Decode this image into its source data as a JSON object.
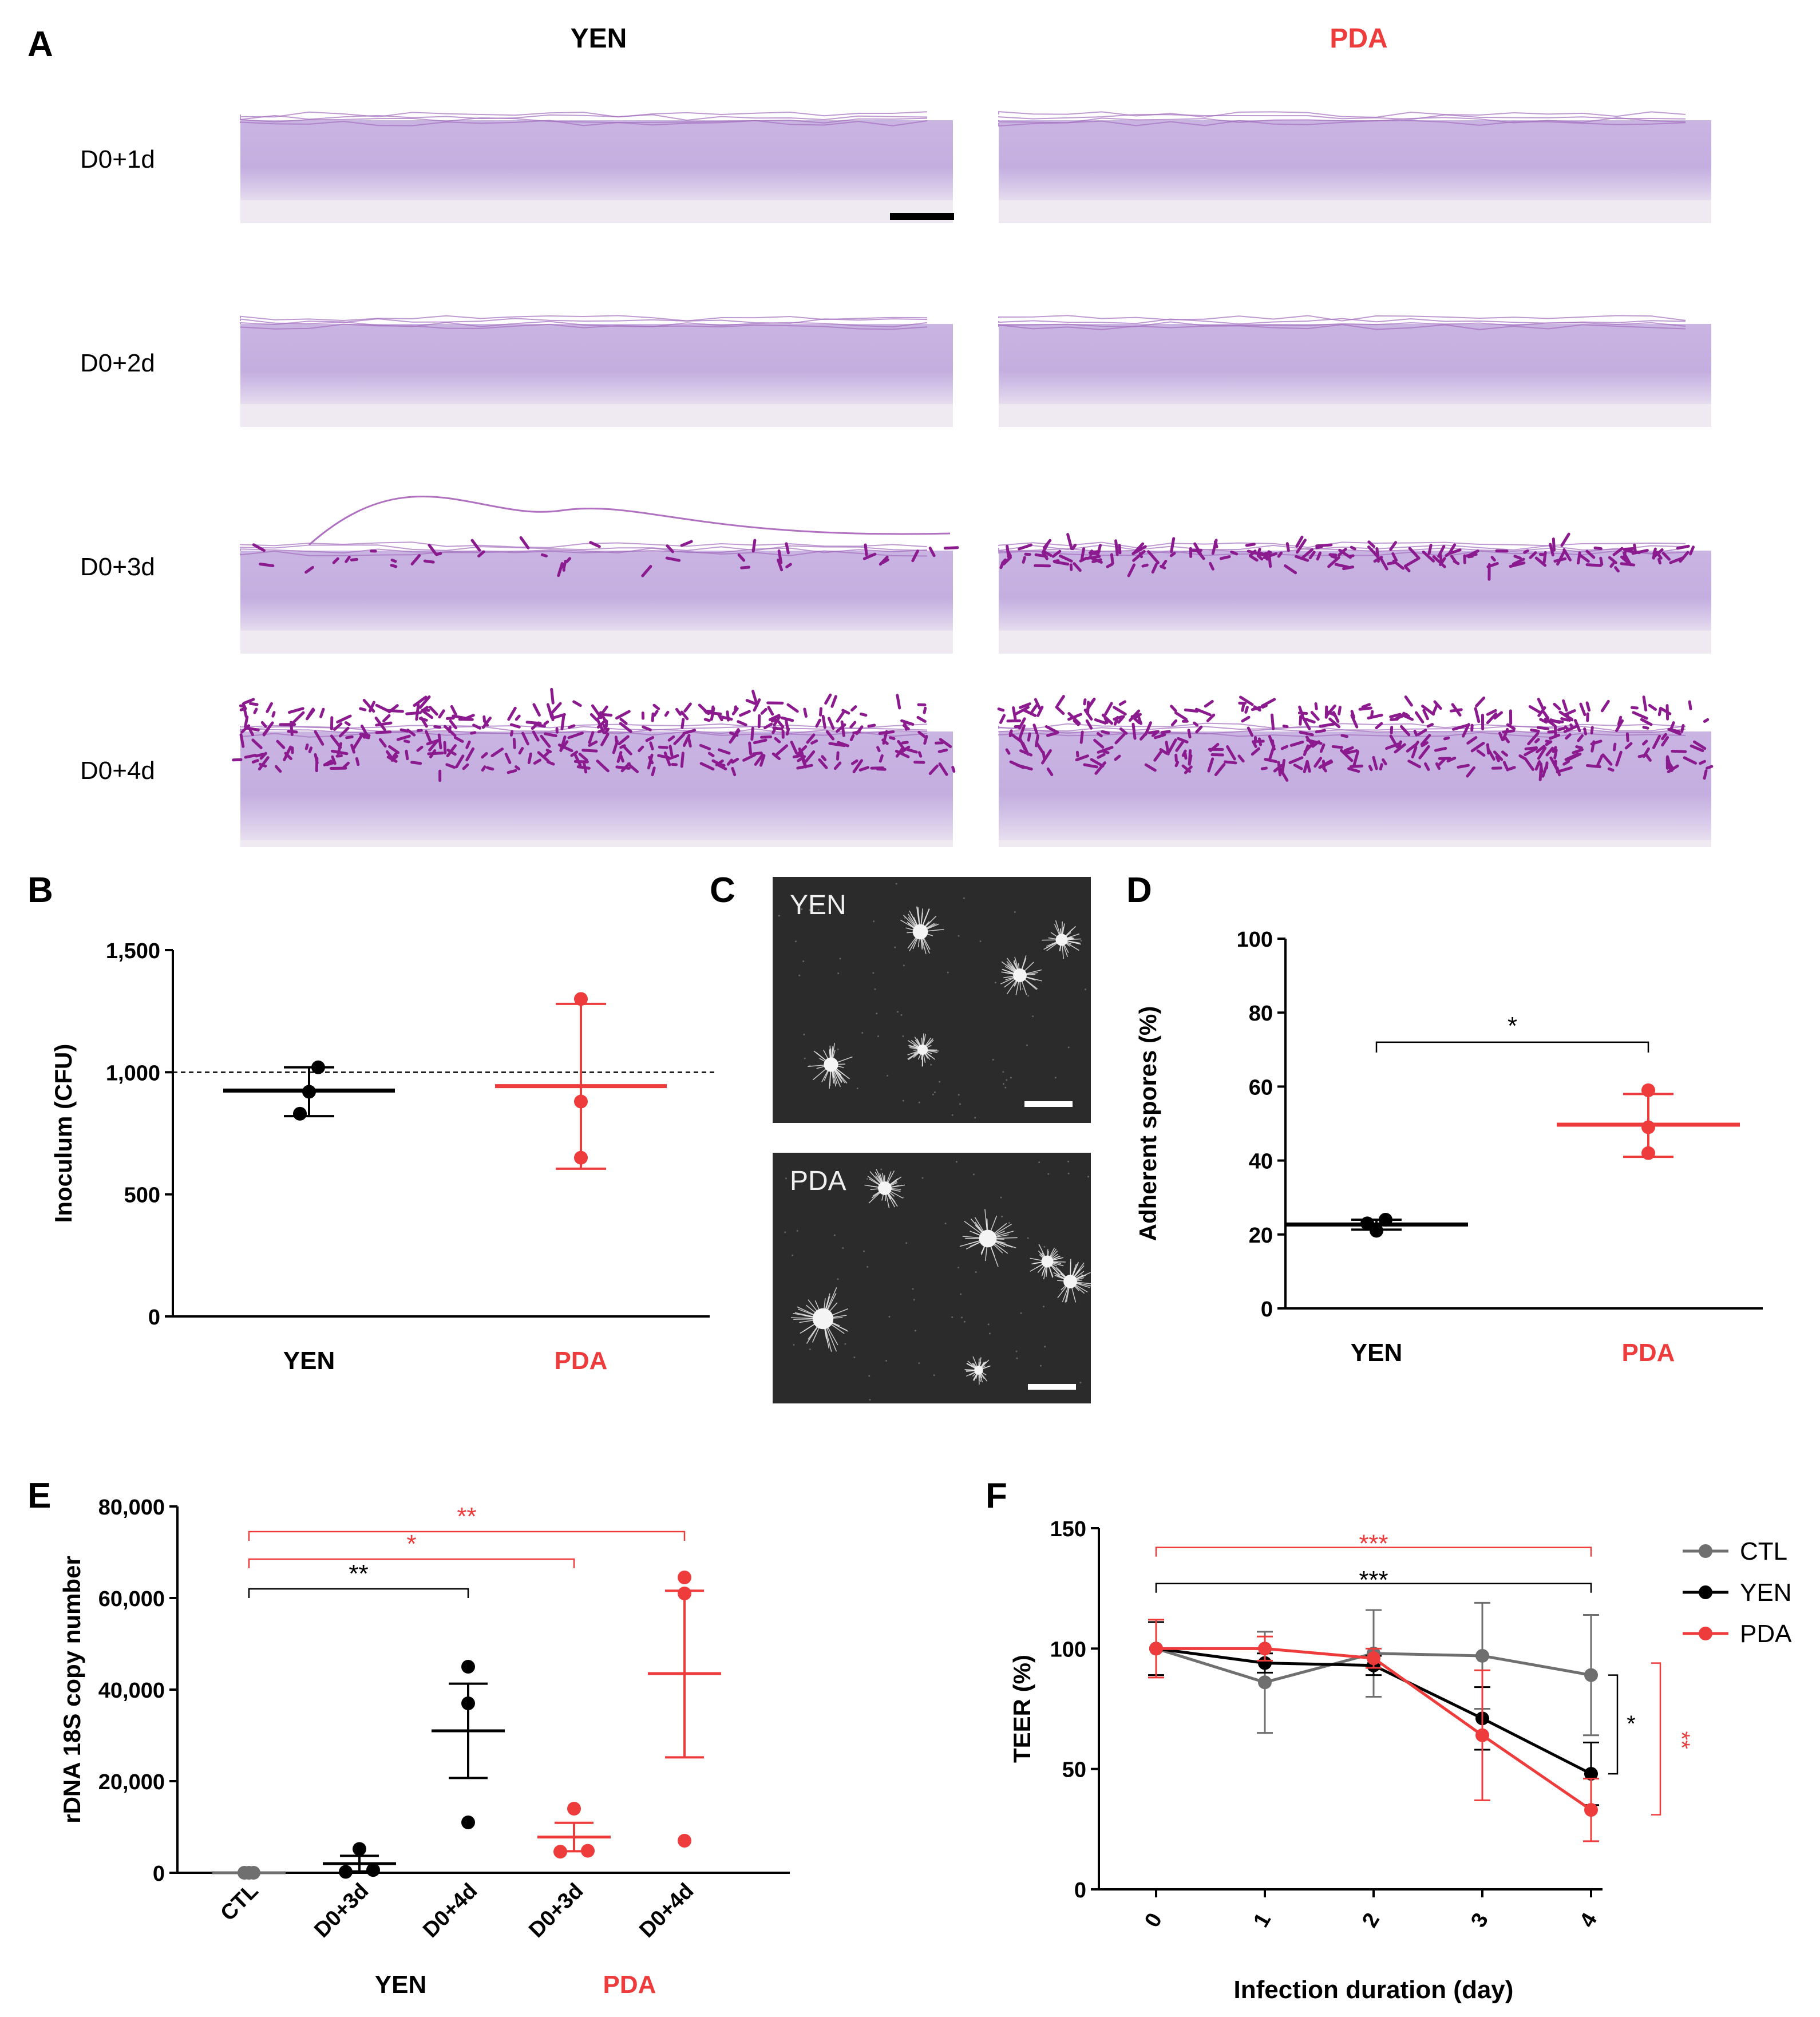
{
  "colors": {
    "yen": "#000000",
    "pda": "#ee3b3b",
    "ctl": "#6f6f6f",
    "stain_light": "#cdb8e0",
    "stain_dark": "#8a1a8e"
  },
  "panel_a": {
    "label": "A",
    "col_titles": [
      "YEN",
      "PDA"
    ],
    "row_labels": [
      "D0+1d",
      "D0+2d",
      "D0+3d",
      "D0+4d"
    ]
  },
  "panel_b": {
    "label": "B"
  },
  "panel_c": {
    "label": "C",
    "images": [
      "YEN",
      "PDA"
    ]
  },
  "panel_d": {
    "label": "D"
  },
  "panel_e": {
    "label": "E",
    "group_labels": [
      "YEN",
      "PDA"
    ]
  },
  "panel_f": {
    "label": "F"
  },
  "chart_data": [
    {
      "panel": "B",
      "type": "scatter",
      "ylabel": "Inoculum (CFU)",
      "categories": [
        "YEN",
        "PDA"
      ],
      "yticks": [
        0,
        500,
        1000,
        1500
      ],
      "ytick_labels": [
        "0",
        "500",
        "1,000",
        "1,500"
      ],
      "ylim": [
        0,
        1500
      ],
      "reference_line": 1000,
      "series": [
        {
          "category": "YEN",
          "points": [
            830,
            920,
            1020
          ],
          "mean": 925,
          "err_low": 820,
          "err_high": 1020
        },
        {
          "category": "PDA",
          "points": [
            650,
            880,
            1300
          ],
          "mean": 943,
          "err_low": 605,
          "err_high": 1280
        }
      ]
    },
    {
      "panel": "D",
      "type": "scatter",
      "ylabel": "Adherent spores (%)",
      "categories": [
        "YEN",
        "PDA"
      ],
      "yticks": [
        0,
        20,
        40,
        60,
        80,
        100
      ],
      "ytick_labels": [
        "0",
        "20",
        "40",
        "60",
        "80",
        "100"
      ],
      "ylim": [
        0,
        100
      ],
      "significance": "*",
      "series": [
        {
          "category": "YEN",
          "points": [
            21,
            23,
            24
          ],
          "mean": 22.7,
          "err_low": 21.3,
          "err_high": 24
        },
        {
          "category": "PDA",
          "points": [
            42,
            49,
            59
          ],
          "mean": 49.7,
          "err_low": 41,
          "err_high": 58
        }
      ]
    },
    {
      "panel": "E",
      "type": "scatter",
      "ylabel": "rDNA 18S copy number",
      "categories": [
        "CTL",
        "D0+3d",
        "D0+4d",
        "D0+3d",
        "D0+4d"
      ],
      "yticks": [
        0,
        20000,
        40000,
        60000,
        80000
      ],
      "ytick_labels": [
        "0",
        "20,000",
        "40,000",
        "60,000",
        "80,000"
      ],
      "ylim": [
        0,
        80000
      ],
      "series": [
        {
          "category": "CTL",
          "group": "CTL",
          "points": [
            0,
            0,
            0
          ],
          "mean": 0,
          "err_low": 0,
          "err_high": 0
        },
        {
          "category": "D0+3d",
          "group": "YEN",
          "points": [
            200,
            600,
            5200
          ],
          "mean": 2000,
          "err_low": 300,
          "err_high": 3700
        },
        {
          "category": "D0+4d",
          "group": "YEN",
          "points": [
            11000,
            37000,
            45000
          ],
          "mean": 31000,
          "err_low": 20700,
          "err_high": 41300
        },
        {
          "category": "D0+3d",
          "group": "PDA",
          "points": [
            4600,
            4800,
            14000
          ],
          "mean": 7800,
          "err_low": 4700,
          "err_high": 10900
        },
        {
          "category": "D0+4d",
          "group": "PDA",
          "points": [
            7000,
            61000,
            64500
          ],
          "mean": 43500,
          "err_low": 25200,
          "err_high": 61600
        }
      ],
      "significance": [
        {
          "label": "**",
          "from": "CTL",
          "to": "YEN D0+4d",
          "color": "yen"
        },
        {
          "label": "*",
          "from": "CTL",
          "to": "PDA D0+3d",
          "color": "pda"
        },
        {
          "label": "**",
          "from": "CTL",
          "to": "PDA D0+4d",
          "color": "pda"
        }
      ]
    },
    {
      "panel": "F",
      "type": "line",
      "xlabel": "Infection duration (day)",
      "ylabel": "TEER (%)",
      "x": [
        0,
        1,
        2,
        3,
        4
      ],
      "xtick_labels": [
        "0",
        "1",
        "2",
        "3",
        "4"
      ],
      "yticks": [
        0,
        50,
        100,
        150
      ],
      "ytick_labels": [
        "0",
        "50",
        "100",
        "150"
      ],
      "ylim": [
        0,
        150
      ],
      "legend_position": "top-right",
      "series": [
        {
          "name": "CTL",
          "color": "ctl",
          "values": [
            100,
            86,
            98,
            97,
            89
          ],
          "err": [
            11,
            21,
            18,
            22,
            25
          ]
        },
        {
          "name": "YEN",
          "color": "yen",
          "values": [
            100,
            94,
            93,
            71,
            48
          ],
          "err": [
            11,
            4,
            4,
            13,
            13
          ]
        },
        {
          "name": "PDA",
          "color": "pda",
          "values": [
            100,
            100,
            96,
            64,
            33
          ],
          "err": [
            12,
            5,
            4,
            27,
            13
          ]
        }
      ],
      "significance": [
        {
          "label": "***",
          "color": "pda"
        },
        {
          "label": "***",
          "color": "yen"
        },
        {
          "label": "*",
          "color": "yen"
        },
        {
          "label": "**",
          "color": "pda"
        }
      ]
    }
  ]
}
